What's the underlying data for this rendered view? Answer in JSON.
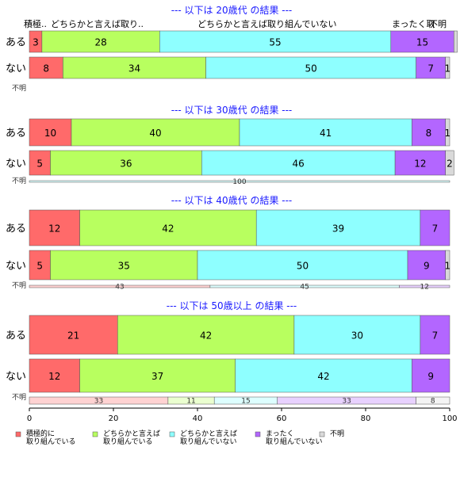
{
  "chart_data": {
    "type": "bar",
    "orientation": "horizontal",
    "stacked": true,
    "xlim": [
      0,
      100
    ],
    "x_ticks": [
      0,
      20,
      40,
      60,
      80,
      100
    ],
    "grid": false,
    "legend_position": "bottom",
    "top_category_labels": [
      "積極..",
      "どちらかと言えば取り..",
      "どちらかと言えば取り組んでいない",
      "まったく取",
      "不明"
    ],
    "categories": [
      "積極的に\n取り組んでいる",
      "どちらかと言えば\n取り組んでいる",
      "どちらかと言えば\n取り組んでいない",
      "まったく\n取り組んでいない",
      "不明"
    ],
    "colors": [
      "#ff6a6a",
      "#b8ff5f",
      "#8effff",
      "#b366ff",
      "#d9d9d9"
    ],
    "panels": [
      {
        "title": "--- 以下は 20歳代 の結果 ---",
        "rows": [
          {
            "label": "ある",
            "values": [
              3,
              28,
              55,
              15,
              0.8
            ],
            "labels": [
              "3",
              "28",
              "55",
              "15",
              ""
            ]
          },
          {
            "label": "ない",
            "values": [
              8,
              34,
              50,
              7,
              1
            ],
            "labels": [
              "8",
              "34",
              "50",
              "7",
              "1"
            ]
          },
          {
            "label": "不明",
            "values": [
              0,
              0,
              0,
              0,
              0
            ],
            "labels": [
              "",
              "",
              "",
              "",
              ""
            ]
          }
        ]
      },
      {
        "title": "--- 以下は 30歳代 の結果 ---",
        "rows": [
          {
            "label": "ある",
            "values": [
              10,
              40,
              41,
              8,
              1
            ],
            "labels": [
              "10",
              "40",
              "41",
              "8",
              "1"
            ]
          },
          {
            "label": "ない",
            "values": [
              5,
              36,
              46,
              12,
              2
            ],
            "labels": [
              "5",
              "36",
              "46",
              "12",
              "2"
            ]
          },
          {
            "label": "不明",
            "values": [
              0,
              0,
              100,
              0,
              0
            ],
            "labels": [
              "",
              "",
              "100",
              "",
              ""
            ]
          }
        ]
      },
      {
        "title": "--- 以下は 40歳代 の結果 ---",
        "rows": [
          {
            "label": "ある",
            "values": [
              12,
              42,
              39,
              7,
              0
            ],
            "labels": [
              "12",
              "42",
              "39",
              "7",
              ""
            ]
          },
          {
            "label": "ない",
            "values": [
              5,
              35,
              50,
              9,
              1
            ],
            "labels": [
              "5",
              "35",
              "50",
              "9",
              "1"
            ]
          },
          {
            "label": "不明",
            "values": [
              43,
              0,
              45,
              12,
              0
            ],
            "labels": [
              "43",
              "",
              "45",
              "12",
              ""
            ]
          }
        ]
      },
      {
        "title": "--- 以下は 50歳以上 の結果 ---",
        "rows": [
          {
            "label": "ある",
            "values": [
              21,
              42,
              30,
              7,
              0
            ],
            "labels": [
              "21",
              "42",
              "30",
              "7",
              ""
            ]
          },
          {
            "label": "ない",
            "values": [
              12,
              37,
              42,
              9,
              0
            ],
            "labels": [
              "12",
              "37",
              "42",
              "9",
              ""
            ]
          },
          {
            "label": "不明",
            "values": [
              33,
              11,
              15,
              33,
              8
            ],
            "labels": [
              "33",
              "11",
              "15",
              "33",
              "8"
            ]
          }
        ]
      }
    ]
  }
}
